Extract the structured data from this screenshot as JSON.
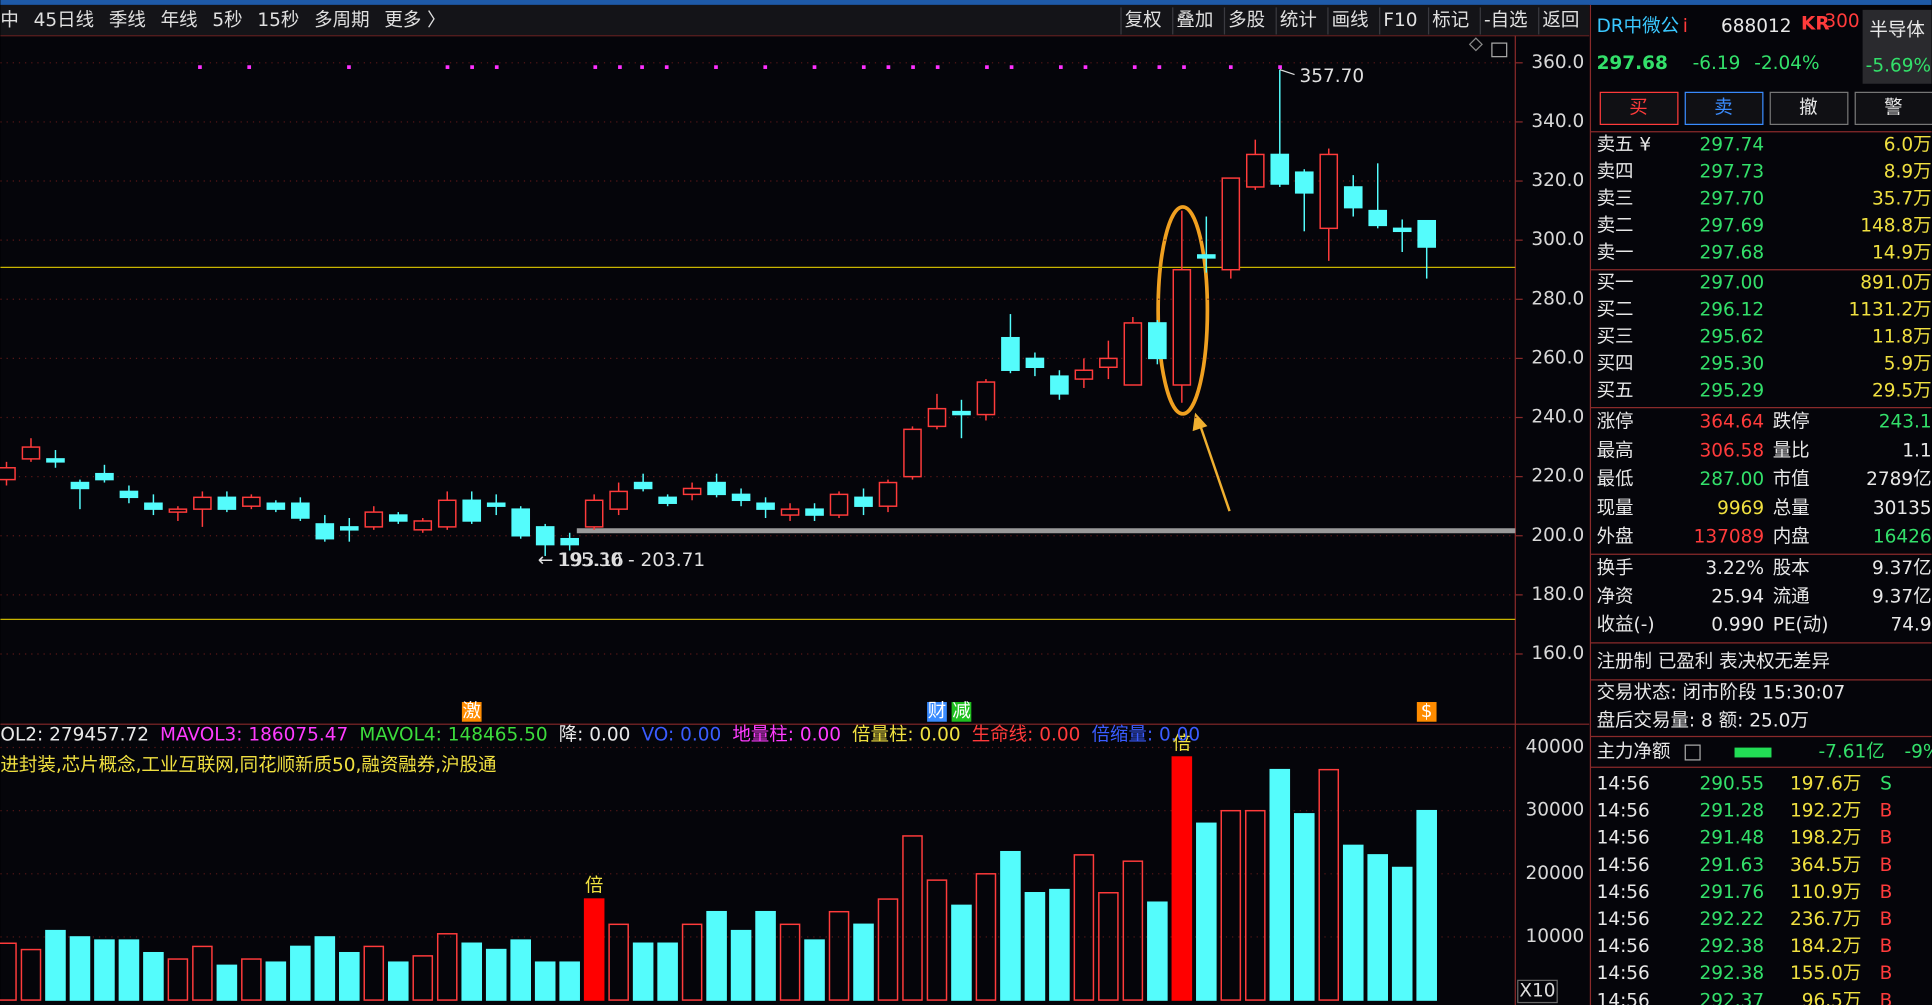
{
  "toolbar": {
    "periods": [
      "中",
      "45日线",
      "季线",
      "年线",
      "5秒",
      "15秒",
      "多周期",
      "更多 〉"
    ],
    "tools": [
      "复权",
      "叠加",
      "多股",
      "统计",
      "画线",
      "F10",
      "标记",
      "-自选",
      "返回"
    ]
  },
  "chart_data": [
    {
      "type": "candlestick",
      "open": [
        219,
        226,
        226,
        218,
        221,
        215,
        211,
        208,
        209,
        213,
        210,
        211,
        211,
        204,
        203,
        203,
        207,
        202,
        203,
        212,
        211,
        209,
        203,
        199,
        203,
        209,
        218,
        213,
        214,
        218,
        214,
        211,
        207,
        209,
        207,
        213,
        210,
        220,
        237,
        242,
        241,
        267,
        260,
        254,
        253,
        257,
        251,
        272,
        251,
        295,
        290,
        318,
        329,
        323,
        304,
        318,
        310,
        304,
        306.58
      ],
      "high": [
        225,
        233,
        229,
        219,
        224,
        217,
        214,
        210,
        215,
        215,
        214,
        212,
        213,
        207,
        206,
        210,
        208,
        206,
        215,
        215,
        214,
        210,
        204,
        201,
        214,
        218,
        221,
        214,
        218,
        221,
        216,
        213,
        211,
        211,
        215,
        216,
        219,
        237,
        248,
        246,
        253,
        275,
        262,
        256,
        260,
        266,
        274,
        273,
        310,
        308,
        321,
        334,
        357.7,
        324,
        331,
        322,
        326,
        307,
        306.58
      ],
      "low": [
        217,
        225,
        223,
        209,
        218,
        211,
        207,
        205,
        203,
        208,
        209,
        208,
        205,
        198,
        198,
        202,
        204,
        201,
        202,
        204,
        207,
        199,
        193.16,
        195,
        202,
        207,
        215,
        210,
        212,
        213,
        210,
        206,
        205,
        205,
        206,
        207,
        208,
        219,
        236,
        233,
        239,
        255,
        254,
        246,
        250,
        253,
        251,
        258,
        245,
        289,
        287,
        317,
        318,
        303,
        293,
        308,
        304,
        296,
        287
      ],
      "close": [
        223,
        230,
        225,
        216,
        219,
        213,
        209,
        209,
        213,
        209,
        213,
        209,
        206,
        199,
        202,
        208,
        205,
        205,
        212,
        205,
        210,
        200,
        197,
        197,
        212,
        215,
        216,
        211,
        216,
        214,
        212,
        209,
        209,
        207,
        214,
        210,
        218,
        236,
        243,
        241,
        252,
        256,
        257,
        248,
        256,
        260,
        272,
        260,
        290,
        294,
        321,
        329,
        319,
        316,
        329,
        311,
        305,
        303,
        297.68
      ],
      "up_color": "#ff3b3b",
      "down_color": "#54fcfc",
      "ylim": [
        136,
        369
      ],
      "yticks": [
        {
          "value": 160,
          "label": "160.0"
        },
        {
          "value": 180,
          "label": "180.0"
        },
        {
          "value": 200,
          "label": "200.0"
        },
        {
          "value": 220,
          "label": "220.0"
        },
        {
          "value": 240,
          "label": "240.0"
        },
        {
          "value": 260,
          "label": "260.0"
        },
        {
          "value": 280,
          "label": "280.0"
        },
        {
          "value": 300,
          "label": "300.0"
        },
        {
          "value": 320,
          "label": "320.0"
        },
        {
          "value": 340,
          "label": "340.0"
        },
        {
          "value": 360,
          "label": "360.0"
        }
      ],
      "lines": [
        {
          "value": 290.8,
          "color": "#c8b400"
        },
        {
          "value": 171.7,
          "color": "#c8b400"
        },
        {
          "value": 201.7,
          "color": "#9a9a9a"
        }
      ],
      "high_label": "357.70",
      "low_label": "← 193.16",
      "range_label": "195.30 - 203.71",
      "signals": [
        {
          "index": 19,
          "label": "激",
          "color": "#ff8c00"
        },
        {
          "index": 38,
          "label": "财",
          "color": "#3a8cff"
        },
        {
          "index": 39,
          "label": "减",
          "color": "#20c020"
        },
        {
          "index": 58,
          "label": "$",
          "color": "#ff8c00"
        }
      ]
    },
    {
      "type": "bar",
      "values": [
        9000,
        8000,
        11000,
        10000,
        9500,
        9500,
        7500,
        6500,
        8500,
        5500,
        6500,
        6000,
        8500,
        10000,
        7500,
        8500,
        6000,
        7000,
        10500,
        9000,
        8000,
        9500,
        6000,
        6000,
        16000,
        12000,
        9000,
        9000,
        12000,
        14000,
        11000,
        14000,
        12000,
        9500,
        14000,
        12000,
        16000,
        26000,
        19000,
        15000,
        20000,
        23500,
        17000,
        17500,
        23000,
        17000,
        22000,
        15500,
        38500,
        28000,
        30000,
        30000,
        36500,
        29500,
        36500,
        24500,
        23000,
        21000,
        30000
      ],
      "ylim": [
        0,
        43700
      ],
      "yticks": [
        10000,
        20000,
        30000,
        40000
      ],
      "legend": [
        {
          "name": "OL2: 279457.72",
          "color": "#e8e8e8"
        },
        {
          "name": "MAVOL3: 186075.47",
          "color": "#ff3cff"
        },
        {
          "name": "MAVOL4: 148465.50",
          "color": "#3cdc3c"
        },
        {
          "name": "降: 0.00",
          "color": "#e8e8e8"
        },
        {
          "name": "VO: 0.00",
          "color": "#3a5cff"
        },
        {
          "name": "地量柱: 0.00",
          "color": "#ff3cff"
        },
        {
          "name": "倍量柱: 0.00",
          "color": "#f0e040"
        },
        {
          "name": "生命线: 0.00",
          "color": "#ff3b3b"
        },
        {
          "name": "倍缩量: 0.00",
          "color": "#3a5cff"
        }
      ],
      "concepts": "进封装,芯片概念,工业互联网,同花顺新质50,融资融券,沪股通",
      "markers": [
        {
          "index": 24,
          "label": "倍"
        },
        {
          "index": 48,
          "label": "倍"
        }
      ],
      "scale_label": "X10"
    }
  ],
  "quote": {
    "name": "DR中微公",
    "flag": "i",
    "code": "688012",
    "badge": "KR",
    "badge_sub": "300",
    "sector": "半导体",
    "sector_change": "-5.69%",
    "price": "297.68",
    "change": "-6.19",
    "change_pct": "-2.04%",
    "buttons": [
      "买",
      "卖",
      "撤",
      "警"
    ],
    "asks": [
      [
        "卖五 ¥",
        "297.74",
        "6.0万"
      ],
      [
        "卖四",
        "297.73",
        "8.9万"
      ],
      [
        "卖三",
        "297.70",
        "35.7万"
      ],
      [
        "卖二",
        "297.69",
        "148.8万"
      ],
      [
        "卖一",
        "297.68",
        "14.9万"
      ]
    ],
    "bids": [
      [
        "买一",
        "297.00",
        "891.0万"
      ],
      [
        "买二",
        "296.12",
        "1131.2万"
      ],
      [
        "买三",
        "295.62",
        "11.8万"
      ],
      [
        "买四",
        "295.30",
        "5.9万"
      ],
      [
        "买五",
        "295.29",
        "29.5万"
      ]
    ],
    "stats": [
      [
        "涨停",
        "364.64",
        "跌停",
        "243.1"
      ],
      [
        "最高",
        "306.58",
        "量比",
        "1.1"
      ],
      [
        "最低",
        "287.00",
        "市值",
        "2789亿"
      ],
      [
        "现量",
        "9969",
        "总量",
        "30135"
      ],
      [
        "外盘",
        "137089",
        "内盘",
        "16426"
      ],
      [
        "换手",
        "3.22%",
        "股本",
        "9.37亿"
      ],
      [
        "净资",
        "25.94",
        "流通",
        "9.37亿"
      ],
      [
        "收益(-)",
        "0.990",
        "PE(动)",
        "74.9"
      ]
    ],
    "tags": "注册制 已盈利 表决权无差异",
    "status": "交易状态: 闭市阶段 15:30:07",
    "after_hours": "盘后交易量: 8 额: 25.0万",
    "flow": {
      "label": "主力净额",
      "value": "-7.61亿",
      "pct": "-9%"
    },
    "trades": [
      [
        "14:56",
        "290.55",
        "197.6万",
        "S"
      ],
      [
        "14:56",
        "291.28",
        "192.2万",
        "B"
      ],
      [
        "14:56",
        "291.48",
        "198.2万",
        "B"
      ],
      [
        "14:56",
        "291.63",
        "364.5万",
        "B"
      ],
      [
        "14:56",
        "291.76",
        "110.9万",
        "B"
      ],
      [
        "14:56",
        "292.22",
        "236.7万",
        "B"
      ],
      [
        "14:56",
        "292.38",
        "184.2万",
        "B"
      ],
      [
        "14:56",
        "292.38",
        "155.0万",
        "B"
      ],
      [
        "14:56",
        "292.37",
        "96.5万",
        "B"
      ]
    ]
  }
}
